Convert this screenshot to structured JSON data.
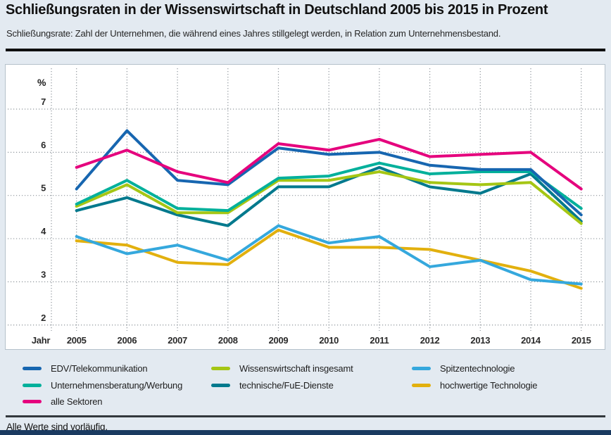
{
  "header": {
    "title": "Schließungsraten in der Wissenswirtschaft in Deutschland 2005 bis 2015 in Prozent",
    "subtitle": "Schließungsrate: Zahl der Unternehmen, die während eines Jahres stillgelegt werden, in Relation zum Unternehmensbestand."
  },
  "chart_data": {
    "type": "line",
    "x": [
      2005,
      2006,
      2007,
      2008,
      2009,
      2010,
      2011,
      2012,
      2013,
      2014,
      2015
    ],
    "x_axis_label": "Jahr",
    "y_axis_label": "%",
    "y_ticks": [
      7,
      6,
      5,
      4,
      3,
      2
    ],
    "ylim": [
      2,
      7.5
    ],
    "grid": "dotted",
    "legend_position": "bottom",
    "series": [
      {
        "name": "hochwertige Technologie",
        "color": "#e2b00e",
        "values": [
          3.95,
          3.85,
          3.45,
          3.4,
          4.2,
          3.8,
          3.8,
          3.75,
          3.5,
          3.25,
          2.85
        ]
      },
      {
        "name": "Spitzentechnologie",
        "color": "#35a8dd",
        "values": [
          4.05,
          3.65,
          3.85,
          3.5,
          4.3,
          3.9,
          4.05,
          3.35,
          3.5,
          3.05,
          2.95
        ]
      },
      {
        "name": "technische/FuE-Dienste",
        "color": "#00798d",
        "values": [
          4.65,
          4.95,
          4.55,
          4.3,
          5.2,
          5.2,
          5.65,
          5.2,
          5.05,
          5.5,
          4.4
        ]
      },
      {
        "name": "Wissenswirtschaft insgesamt",
        "color": "#a5c614",
        "values": [
          4.75,
          5.25,
          4.6,
          4.6,
          5.35,
          5.35,
          5.55,
          5.3,
          5.25,
          5.3,
          4.35
        ]
      },
      {
        "name": "Unternehmensberatung/Werbung",
        "color": "#00b09b",
        "values": [
          4.8,
          5.35,
          4.7,
          4.65,
          5.4,
          5.45,
          5.75,
          5.5,
          5.55,
          5.55,
          4.7
        ]
      },
      {
        "name": "EDV/Telekommunikation",
        "color": "#1766b0",
        "values": [
          5.15,
          6.5,
          5.35,
          5.25,
          6.1,
          5.95,
          6.0,
          5.7,
          5.6,
          5.6,
          4.55
        ]
      },
      {
        "name": "alle Sektoren",
        "color": "#e5007d",
        "values": [
          5.65,
          6.05,
          5.55,
          5.3,
          6.2,
          6.05,
          6.3,
          5.9,
          5.95,
          6.0,
          5.15
        ]
      }
    ],
    "legend_columns": [
      [
        5,
        4,
        6
      ],
      [
        3,
        2
      ],
      [
        1,
        0
      ]
    ]
  },
  "footer": {
    "note": "Alle Werte sind vorläufig."
  },
  "colors": {
    "background": "#e3eaf1",
    "plot_background": "#ffffff",
    "grid": "#8f969c",
    "top_rule": "#0e0e0e",
    "bottom_rule": "#33383d",
    "bottom_bar": "#1a3a60"
  }
}
